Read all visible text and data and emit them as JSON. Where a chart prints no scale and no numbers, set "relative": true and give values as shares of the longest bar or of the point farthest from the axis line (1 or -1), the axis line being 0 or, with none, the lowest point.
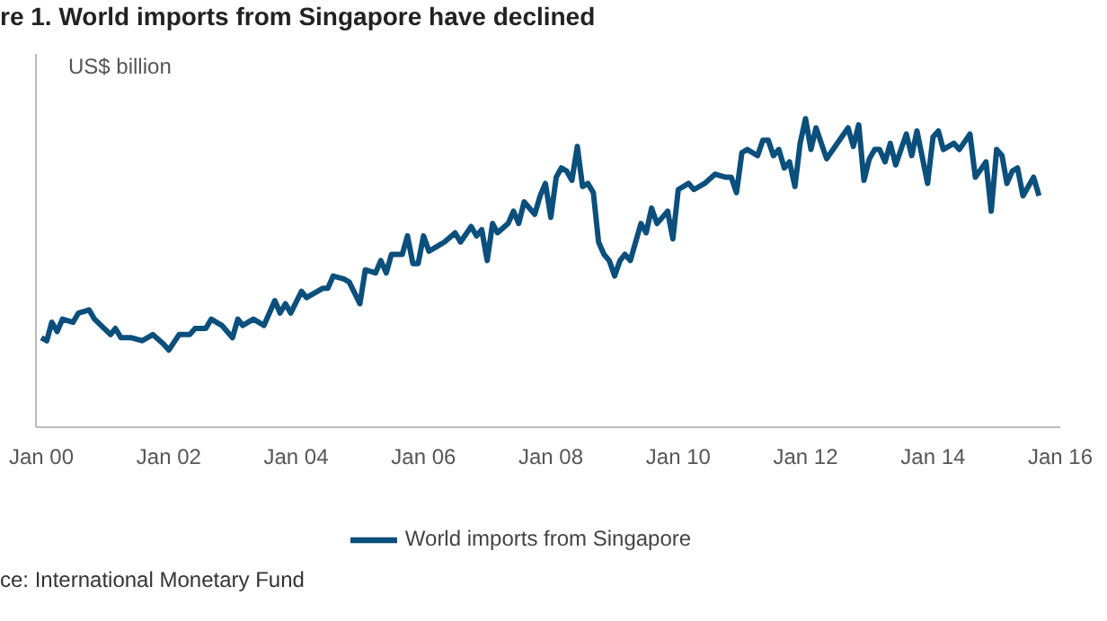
{
  "chart_data": {
    "type": "line",
    "title": "re 1. World imports from Singapore have declined",
    "ylabel": "US$ billion",
    "relative": true,
    "legend": "bottom",
    "annotations": [
      "ce: International Monetary Fund"
    ],
    "xlim": [
      "1999-12",
      "2016-01"
    ],
    "xticks": [
      {
        "value": "2000-01",
        "label": "Jan 00"
      },
      {
        "value": "2002-01",
        "label": "Jan 02"
      },
      {
        "value": "2004-01",
        "label": "Jan 04"
      },
      {
        "value": "2006-01",
        "label": "Jan 06"
      },
      {
        "value": "2008-01",
        "label": "Jan 08"
      },
      {
        "value": "2010-01",
        "label": "Jan 10"
      },
      {
        "value": "2012-01",
        "label": "Jan 12"
      },
      {
        "value": "2014-01",
        "label": "Jan 14"
      },
      {
        "value": "2016-01",
        "label": "Jan 16"
      }
    ],
    "x": [
      "2000-01",
      "2000-02",
      "2000-03",
      "2000-04",
      "2000-05",
      "2000-07",
      "2000-08",
      "2000-10",
      "2000-11",
      "2001-02",
      "2001-03",
      "2001-04",
      "2001-06",
      "2001-08",
      "2001-10",
      "2001-12",
      "2002-01",
      "2002-03",
      "2002-05",
      "2002-06",
      "2002-08",
      "2002-09",
      "2002-11",
      "2003-01",
      "2003-02",
      "2003-03",
      "2003-05",
      "2003-07",
      "2003-09",
      "2003-10",
      "2003-11",
      "2003-12",
      "2004-02",
      "2004-03",
      "2004-06",
      "2004-07",
      "2004-08",
      "2004-10",
      "2004-11",
      "2005-01",
      "2005-02",
      "2005-04",
      "2005-05",
      "2005-06",
      "2005-07",
      "2005-09",
      "2005-10",
      "2005-11",
      "2005-12",
      "2006-01",
      "2006-02",
      "2006-04",
      "2006-05",
      "2006-07",
      "2006-08",
      "2006-10",
      "2006-11",
      "2006-12",
      "2007-01",
      "2007-02",
      "2007-03",
      "2007-05",
      "2007-06",
      "2007-07",
      "2007-08",
      "2007-10",
      "2007-11",
      "2007-12",
      "2008-01",
      "2008-02",
      "2008-03",
      "2008-04",
      "2008-05",
      "2008-06",
      "2008-07",
      "2008-08",
      "2008-09",
      "2008-10",
      "2008-11",
      "2008-12",
      "2009-01",
      "2009-02",
      "2009-03",
      "2009-04",
      "2009-06",
      "2009-07",
      "2009-08",
      "2009-09",
      "2009-11",
      "2009-12",
      "2010-01",
      "2010-03",
      "2010-04",
      "2010-06",
      "2010-08",
      "2010-10",
      "2010-11",
      "2010-12",
      "2011-01",
      "2011-02",
      "2011-04",
      "2011-05",
      "2011-06",
      "2011-07",
      "2011-08",
      "2011-09",
      "2011-10",
      "2011-11",
      "2011-12",
      "2012-01",
      "2012-02",
      "2012-03",
      "2012-05",
      "2012-07",
      "2012-09",
      "2012-10",
      "2012-11",
      "2012-12",
      "2013-01",
      "2013-02",
      "2013-03",
      "2013-04",
      "2013-05",
      "2013-06",
      "2013-08",
      "2013-09",
      "2013-10",
      "2013-12",
      "2014-01",
      "2014-02",
      "2014-03",
      "2014-05",
      "2014-06",
      "2014-08",
      "2014-09",
      "2014-11",
      "2014-12",
      "2015-01",
      "2015-02",
      "2015-03",
      "2015-04",
      "2015-05",
      "2015-06",
      "2015-08",
      "2015-09"
    ],
    "series": [
      {
        "name": "World imports from Singapore",
        "color": "#0b4f7c",
        "values": [
          0.29,
          0.28,
          0.34,
          0.31,
          0.35,
          0.34,
          0.37,
          0.38,
          0.35,
          0.3,
          0.32,
          0.29,
          0.29,
          0.28,
          0.3,
          0.27,
          0.25,
          0.3,
          0.3,
          0.32,
          0.32,
          0.35,
          0.33,
          0.29,
          0.35,
          0.33,
          0.35,
          0.33,
          0.41,
          0.37,
          0.4,
          0.37,
          0.44,
          0.42,
          0.45,
          0.45,
          0.49,
          0.48,
          0.47,
          0.4,
          0.51,
          0.5,
          0.54,
          0.5,
          0.56,
          0.56,
          0.62,
          0.53,
          0.53,
          0.62,
          0.57,
          0.59,
          0.6,
          0.63,
          0.6,
          0.65,
          0.62,
          0.64,
          0.54,
          0.66,
          0.63,
          0.66,
          0.7,
          0.66,
          0.73,
          0.69,
          0.75,
          0.79,
          0.68,
          0.81,
          0.84,
          0.83,
          0.8,
          0.91,
          0.78,
          0.79,
          0.76,
          0.6,
          0.56,
          0.54,
          0.49,
          0.54,
          0.56,
          0.54,
          0.66,
          0.63,
          0.71,
          0.66,
          0.7,
          0.61,
          0.77,
          0.79,
          0.77,
          0.79,
          0.82,
          0.81,
          0.81,
          0.76,
          0.89,
          0.9,
          0.88,
          0.93,
          0.93,
          0.88,
          0.9,
          0.84,
          0.86,
          0.78,
          0.92,
          1.0,
          0.9,
          0.97,
          0.87,
          0.92,
          0.97,
          0.91,
          0.98,
          0.8,
          0.87,
          0.9,
          0.9,
          0.86,
          0.92,
          0.85,
          0.95,
          0.88,
          0.96,
          0.79,
          0.94,
          0.96,
          0.9,
          0.92,
          0.9,
          0.95,
          0.81,
          0.86,
          0.7,
          0.9,
          0.88,
          0.79,
          0.83,
          0.84,
          0.75,
          0.81,
          0.75
        ]
      }
    ]
  }
}
